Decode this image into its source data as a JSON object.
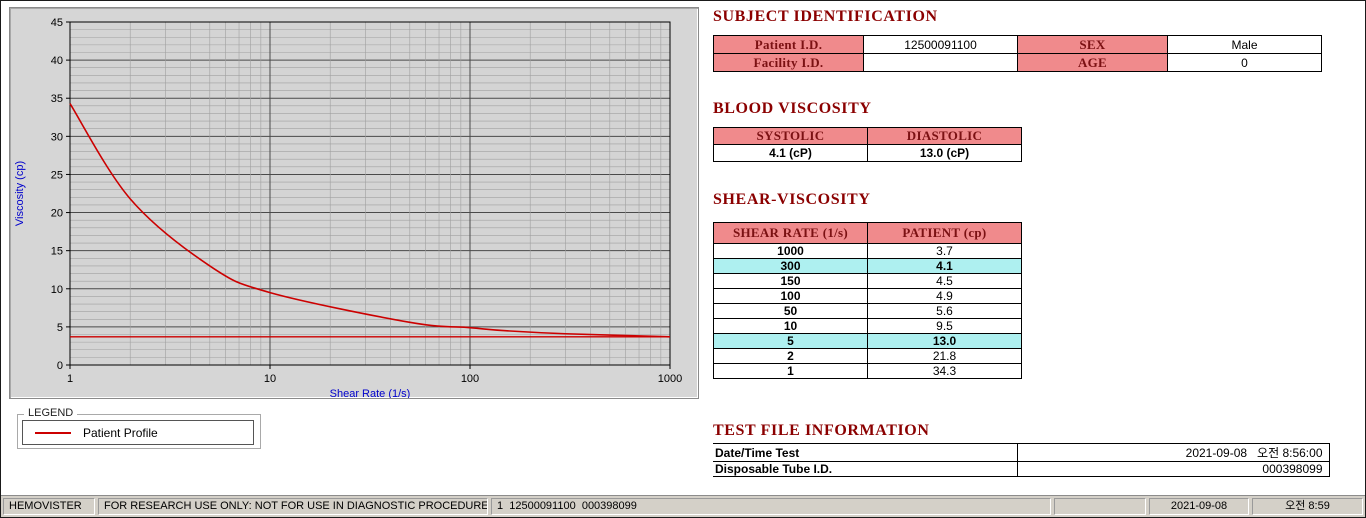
{
  "app": {
    "name": "HEMOVISTER"
  },
  "colors": {
    "section_title": "#8b0000",
    "table_header_bg": "#f08a8c",
    "highlight_bg": "#aef0f0",
    "curve_color": "#cc0000",
    "axis_label_color": "#0000cc",
    "plot_background": "#d4d4d4"
  },
  "chart_data": {
    "type": "line",
    "title": "",
    "xlabel": "Shear Rate (1/s)",
    "ylabel": "Viscosity (cp)",
    "xscale": "log",
    "xlim": [
      1,
      1000
    ],
    "ylim": [
      0,
      45
    ],
    "xticks": [
      1,
      10,
      100,
      1000
    ],
    "yticks": [
      0,
      5,
      10,
      15,
      20,
      25,
      30,
      35,
      40,
      45
    ],
    "grid": true,
    "legend_position": "below-left",
    "x": [
      1,
      2,
      5,
      10,
      50,
      100,
      150,
      300,
      1000
    ],
    "series": [
      {
        "name": "Patient Profile",
        "values": [
          34.3,
          21.8,
          13.0,
          9.5,
          5.6,
          4.9,
          4.5,
          4.1,
          3.7
        ],
        "color": "#cc0000"
      }
    ],
    "reference_line": {
      "y": 3.7,
      "color": "#cc0000"
    }
  },
  "legend": {
    "title": "LEGEND",
    "entries": [
      {
        "label": "Patient Profile",
        "color": "#cc0000"
      }
    ]
  },
  "subject_identification": {
    "title": "SUBJECT IDENTIFICATION",
    "fields": {
      "patient_id_label": "Patient I.D.",
      "patient_id_value": "12500091100",
      "sex_label": "SEX",
      "sex_value": "Male",
      "facility_id_label": "Facility I.D.",
      "facility_id_value": "",
      "age_label": "AGE",
      "age_value": "0"
    }
  },
  "blood_viscosity": {
    "title": "BLOOD VISCOSITY",
    "columns": [
      "SYSTOLIC",
      "DIASTOLIC"
    ],
    "values": [
      "4.1 (cP)",
      "13.0 (cP)"
    ]
  },
  "shear_viscosity": {
    "title": "SHEAR-VISCOSITY",
    "columns": [
      "SHEAR RATE (1/s)",
      "PATIENT (cp)"
    ],
    "rows": [
      {
        "rate": "1000",
        "value": "3.7",
        "highlight": false
      },
      {
        "rate": "300",
        "value": "4.1",
        "highlight": true
      },
      {
        "rate": "150",
        "value": "4.5",
        "highlight": false
      },
      {
        "rate": "100",
        "value": "4.9",
        "highlight": false
      },
      {
        "rate": "50",
        "value": "5.6",
        "highlight": false
      },
      {
        "rate": "10",
        "value": "9.5",
        "highlight": false
      },
      {
        "rate": "5",
        "value": "13.0",
        "highlight": true
      },
      {
        "rate": "2",
        "value": "21.8",
        "highlight": false
      },
      {
        "rate": "1",
        "value": "34.3",
        "highlight": false
      }
    ]
  },
  "test_file_information": {
    "title": "TEST FILE INFORMATION",
    "rows": [
      {
        "label": "Date/Time Test",
        "value": "2021-09-08   오전 8:56:00"
      },
      {
        "label": "Disposable Tube I.D.",
        "value": "000398099"
      }
    ]
  },
  "status_bar": {
    "app_name": "HEMOVISTER",
    "research_notice": "FOR RESEARCH USE ONLY: NOT FOR USE IN DIAGNOSTIC PROCEDURES",
    "test_info": "1  12500091100  000398099",
    "spare": "",
    "date": "2021-09-08",
    "time": "오전 8:59"
  }
}
